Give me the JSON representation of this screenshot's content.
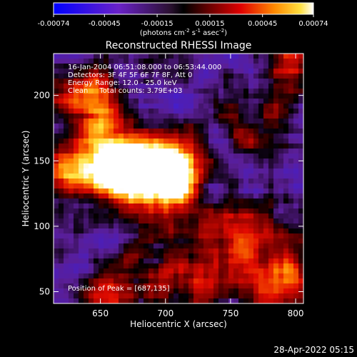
{
  "chart_data": {
    "type": "heatmap",
    "title": "Reconstructed RHESSI Image",
    "xlabel": "Heliocentric X (arcsec)",
    "ylabel": "Heliocentric Y (arcsec)",
    "xlim": [
      614,
      806
    ],
    "ylim": [
      41,
      232
    ],
    "x_ticks": [
      "650",
      "700",
      "750",
      "800"
    ],
    "x_tick_values": [
      650,
      700,
      750,
      800
    ],
    "y_ticks": [
      "50",
      "100",
      "150",
      "200"
    ],
    "y_tick_values": [
      50,
      100,
      150,
      200
    ],
    "colorbar": {
      "ticks": [
        "-0.00074",
        "-0.00045",
        "-0.00015",
        "0.00015",
        "0.00045",
        "0.00074"
      ],
      "tick_values": [
        -0.00074,
        -0.00045,
        -0.00015,
        0.00015,
        0.00045,
        0.00074
      ],
      "range": [
        -0.00074,
        0.00074
      ],
      "label_main": "(photons cm",
      "label_exp1": "-2",
      "label_mid1": " s",
      "label_exp2": "-1",
      "label_mid2": " asec",
      "label_exp3": "-2",
      "label_end": ")"
    },
    "info": {
      "line1": "16-Jan-2004 06:51:08.000 to 06:53:44.000",
      "line2": "Detectors: 3F 4F 5F 6F 7F 8F, Att 0",
      "line3": "Energy Range: 12.0 - 25.0 keV",
      "line4": "Clean     Total counts: 3.79E+03"
    },
    "peak_label": "Position of Peak = [687,135]",
    "peak": [
      687,
      135
    ],
    "sources": [
      {
        "x": 690,
        "y": 135,
        "amp": 1.0
      },
      {
        "x": 668,
        "y": 145,
        "amp": 0.85
      },
      {
        "x": 710,
        "y": 148,
        "amp": 0.8
      },
      {
        "x": 650,
        "y": 160,
        "amp": 0.6
      },
      {
        "x": 640,
        "y": 200,
        "amp": 0.55
      },
      {
        "x": 628,
        "y": 140,
        "amp": 0.5
      },
      {
        "x": 790,
        "y": 60,
        "amp": 0.75
      },
      {
        "x": 760,
        "y": 95,
        "amp": 0.55
      },
      {
        "x": 740,
        "y": 70,
        "amp": 0.45
      },
      {
        "x": 700,
        "y": 60,
        "amp": 0.4
      },
      {
        "x": 660,
        "y": 50,
        "amp": 0.35
      },
      {
        "x": 795,
        "y": 215,
        "amp": 0.35
      },
      {
        "x": 770,
        "y": 180,
        "amp": 0.25
      }
    ]
  },
  "footer": {
    "timestamp": "28-Apr-2022 05:15"
  }
}
